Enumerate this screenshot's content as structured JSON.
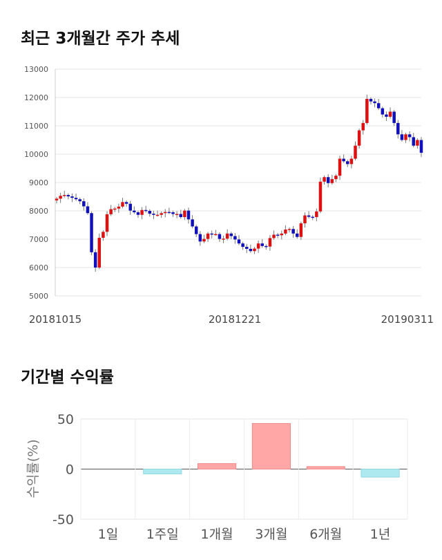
{
  "sections": {
    "price_title": "최근 3개월간 주가 추세",
    "returns_title": "기간별 수익률"
  },
  "colors": {
    "up": "#dd1111",
    "down": "#1111bb",
    "wick": "#777777",
    "pos_bar": "#ffa6a6",
    "neg_bar": "#aee9f0"
  },
  "chart_data": [
    {
      "type": "candlestick",
      "title": "최근 3개월간 주가 추세",
      "ylim": [
        5000,
        13000
      ],
      "y_ticks": [
        "13000",
        "12000",
        "11000",
        "10000",
        "9000",
        "8000",
        "7000",
        "6000",
        "5000"
      ],
      "x_tick_labels": [
        "20181015",
        "20181221",
        "20190311"
      ],
      "grid": true,
      "close": [
        8430,
        8530,
        8560,
        8510,
        8460,
        8410,
        8340,
        8160,
        7920,
        6540,
        6000,
        7050,
        7260,
        7880,
        8060,
        8080,
        8150,
        8310,
        8250,
        8010,
        7950,
        7860,
        8030,
        8000,
        7900,
        7860,
        7860,
        7920,
        7960,
        7950,
        7890,
        7890,
        7780,
        8010,
        7700,
        7450,
        7180,
        6920,
        7010,
        7200,
        7180,
        7180,
        7010,
        7020,
        7200,
        7110,
        6990,
        6850,
        6730,
        6660,
        6580,
        6670,
        6850,
        6760,
        6740,
        7040,
        7160,
        7140,
        7200,
        7340,
        7360,
        7200,
        7080,
        7560,
        7840,
        7790,
        7780,
        7980,
        9030,
        9190,
        8980,
        9120,
        9240,
        9840,
        9750,
        9650,
        9840,
        10300,
        10840,
        11100,
        11950,
        11860,
        11800,
        11620,
        11400,
        11320,
        11500,
        11100,
        10700,
        10500,
        10700,
        10600,
        10300,
        10500,
        10050
      ]
    },
    {
      "type": "bar",
      "title": "기간별 수익률",
      "ylabel": "수익률(%)",
      "ylim": [
        -50,
        50
      ],
      "y_ticks": [
        "50",
        "0",
        "-50"
      ],
      "categories": [
        "1일",
        "1주일",
        "1개월",
        "3개월",
        "6개월",
        "1년"
      ],
      "values": [
        0,
        -4.8,
        5.5,
        45.5,
        2.5,
        -8
      ]
    }
  ]
}
